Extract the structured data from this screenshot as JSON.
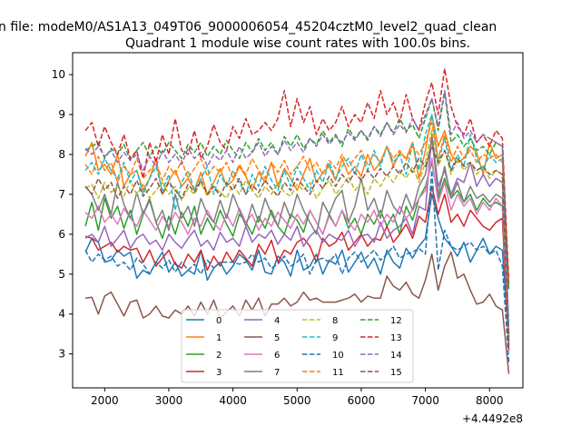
{
  "figure": {
    "suptitle": "n file: modeM0/AS1A13_049T06_9000006054_45204cztM0_level2_quad_clean",
    "background": "#ffffff"
  },
  "chart_data": {
    "type": "line",
    "title": "Quadrant 1 module wise count rates with 100.0s bins.",
    "xlabel": "",
    "ylabel": "",
    "x_offset_label": "+4.4492e8",
    "xlim": [
      1500,
      8520
    ],
    "ylim": [
      2.15,
      10.55
    ],
    "xticks": [
      2000,
      3000,
      4000,
      5000,
      6000,
      7000,
      8000
    ],
    "yticks": [
      3,
      4,
      5,
      6,
      7,
      8,
      9,
      10
    ],
    "grid": false,
    "legend": {
      "placement": "lower-center",
      "columns": 4
    },
    "x": [
      1700,
      1800,
      1900,
      2000,
      2100,
      2200,
      2300,
      2400,
      2500,
      2600,
      2700,
      2800,
      2900,
      3000,
      3100,
      3200,
      3300,
      3400,
      3500,
      3600,
      3700,
      3800,
      3900,
      4000,
      4100,
      4200,
      4300,
      4400,
      4500,
      4600,
      4700,
      4800,
      4900,
      5000,
      5100,
      5200,
      5300,
      5400,
      5500,
      5600,
      5700,
      5800,
      5900,
      6000,
      6100,
      6200,
      6300,
      6400,
      6500,
      6600,
      6700,
      6800,
      6900,
      7000,
      7100,
      7200,
      7300,
      7400,
      7500,
      7600,
      7700,
      7800,
      7900,
      8000,
      8100,
      8200,
      8300
    ],
    "series": [
      {
        "name": "0",
        "color": "#1f77b4",
        "style": "solid",
        "values": [
          5.55,
          5.9,
          5.8,
          5.3,
          5.35,
          5.6,
          5.45,
          5.55,
          4.9,
          5.1,
          5.0,
          5.3,
          5.55,
          5.05,
          5.3,
          4.95,
          5.1,
          5.0,
          5.6,
          4.85,
          5.15,
          5.3,
          5.0,
          5.2,
          5.5,
          5.35,
          5.1,
          5.6,
          5.05,
          5.0,
          5.45,
          5.3,
          4.95,
          5.6,
          5.1,
          5.2,
          5.5,
          5.0,
          5.35,
          5.25,
          5.6,
          5.05,
          5.3,
          5.55,
          5.15,
          5.4,
          5.0,
          5.6,
          5.3,
          5.15,
          5.65,
          5.4,
          5.7,
          5.9,
          7.0,
          6.4,
          5.9,
          5.7,
          5.45,
          5.8,
          5.3,
          5.6,
          5.9,
          5.5,
          5.7,
          5.6,
          3.3
        ]
      },
      {
        "name": "1",
        "color": "#ff7f0e",
        "style": "solid",
        "values": [
          7.95,
          8.3,
          7.6,
          7.75,
          7.5,
          8.0,
          7.2,
          7.5,
          7.6,
          7.1,
          7.4,
          7.9,
          7.0,
          7.35,
          7.6,
          7.2,
          7.4,
          7.1,
          7.55,
          7.0,
          7.3,
          7.65,
          7.2,
          7.35,
          7.7,
          7.45,
          7.1,
          7.55,
          7.3,
          7.8,
          7.2,
          7.65,
          7.4,
          7.1,
          7.5,
          7.9,
          7.3,
          7.55,
          7.7,
          7.35,
          7.9,
          7.5,
          7.7,
          7.45,
          8.0,
          7.6,
          7.8,
          8.2,
          7.7,
          8.05,
          7.9,
          8.3,
          7.4,
          8.1,
          9.0,
          8.2,
          8.6,
          8.0,
          7.8,
          7.9,
          8.2,
          8.05,
          7.5,
          8.3,
          7.9,
          8.0,
          3.3
        ]
      },
      {
        "name": "2",
        "color": "#2ca02c",
        "style": "solid",
        "values": [
          6.2,
          6.8,
          6.1,
          6.9,
          6.4,
          6.7,
          6.15,
          6.6,
          6.0,
          6.5,
          6.85,
          6.3,
          5.9,
          6.45,
          6.0,
          6.55,
          6.2,
          6.7,
          6.0,
          6.4,
          6.1,
          6.6,
          6.25,
          5.95,
          6.5,
          6.3,
          6.0,
          6.45,
          6.15,
          6.6,
          6.2,
          6.0,
          6.5,
          6.35,
          6.05,
          6.6,
          6.3,
          6.0,
          6.5,
          6.2,
          6.6,
          6.15,
          6.4,
          6.0,
          6.5,
          6.25,
          6.6,
          6.2,
          6.5,
          6.0,
          6.7,
          6.35,
          6.9,
          7.2,
          7.8,
          6.9,
          7.4,
          6.9,
          7.1,
          6.8,
          7.0,
          6.6,
          6.9,
          6.7,
          6.8,
          6.7,
          3.4
        ]
      },
      {
        "name": "3",
        "color": "#d62728",
        "style": "solid",
        "values": [
          5.95,
          5.9,
          5.6,
          5.7,
          5.8,
          5.55,
          5.7,
          5.6,
          5.65,
          5.3,
          5.6,
          5.2,
          5.4,
          5.6,
          5.25,
          5.15,
          5.5,
          5.3,
          5.6,
          5.1,
          5.45,
          5.2,
          5.55,
          5.3,
          5.6,
          5.4,
          5.2,
          5.75,
          5.5,
          5.85,
          5.3,
          5.6,
          5.5,
          5.8,
          5.9,
          5.7,
          5.3,
          5.9,
          5.7,
          5.8,
          6.05,
          5.6,
          5.8,
          6.0,
          5.7,
          5.9,
          5.85,
          6.2,
          5.8,
          6.0,
          6.25,
          5.9,
          6.45,
          6.3,
          7.2,
          6.5,
          7.0,
          6.3,
          6.5,
          6.2,
          6.6,
          6.4,
          6.2,
          6.1,
          6.3,
          6.4,
          3.1
        ]
      },
      {
        "name": "4",
        "color": "#9467bd",
        "style": "solid",
        "values": [
          5.9,
          6.0,
          5.8,
          6.2,
          5.7,
          5.9,
          6.1,
          5.65,
          5.9,
          6.0,
          5.75,
          5.85,
          5.6,
          6.0,
          5.8,
          5.65,
          5.9,
          6.1,
          5.7,
          5.85,
          5.6,
          6.05,
          5.8,
          5.9,
          5.7,
          6.2,
          5.8,
          6.0,
          5.9,
          6.1,
          5.75,
          6.0,
          5.85,
          6.2,
          5.7,
          5.95,
          6.1,
          5.8,
          6.0,
          5.9,
          5.85,
          6.1,
          5.7,
          5.95,
          6.0,
          5.8,
          6.3,
          5.9,
          6.1,
          6.2,
          6.4,
          6.0,
          6.7,
          6.6,
          8.5,
          7.2,
          7.6,
          7.0,
          7.4,
          7.3,
          7.8,
          7.2,
          7.5,
          7.2,
          7.4,
          7.3,
          3.3
        ]
      },
      {
        "name": "5",
        "color": "#8c564b",
        "style": "solid",
        "values": [
          4.4,
          4.42,
          4.0,
          4.45,
          4.55,
          4.25,
          3.95,
          4.3,
          4.35,
          3.9,
          4.0,
          4.2,
          3.95,
          3.9,
          4.1,
          4.0,
          4.2,
          3.95,
          4.3,
          4.0,
          4.35,
          3.9,
          4.05,
          4.2,
          3.95,
          4.35,
          4.1,
          4.4,
          3.95,
          4.25,
          4.25,
          4.4,
          4.2,
          4.3,
          4.55,
          4.35,
          4.4,
          4.3,
          4.3,
          4.3,
          4.35,
          4.4,
          4.5,
          4.3,
          4.45,
          4.4,
          4.4,
          4.95,
          4.7,
          4.6,
          4.8,
          4.5,
          4.4,
          4.85,
          5.5,
          4.6,
          5.2,
          5.55,
          4.9,
          5.0,
          4.6,
          4.25,
          4.3,
          4.5,
          4.2,
          4.1,
          2.5
        ]
      },
      {
        "name": "6",
        "color": "#e377c2",
        "style": "solid",
        "values": [
          6.55,
          6.4,
          6.7,
          6.3,
          6.5,
          6.25,
          6.65,
          6.4,
          6.2,
          6.6,
          6.35,
          6.1,
          6.45,
          6.2,
          6.55,
          6.3,
          6.0,
          6.4,
          6.2,
          6.6,
          6.3,
          6.1,
          6.5,
          6.2,
          6.65,
          6.3,
          6.5,
          6.1,
          6.4,
          6.2,
          6.55,
          6.35,
          6.15,
          6.5,
          6.25,
          6.6,
          6.3,
          6.0,
          6.45,
          6.2,
          6.6,
          6.3,
          6.1,
          6.5,
          6.3,
          6.6,
          6.2,
          6.5,
          6.3,
          6.7,
          6.4,
          6.6,
          6.9,
          7.1,
          7.9,
          6.8,
          7.3,
          6.6,
          7.0,
          6.7,
          6.9,
          6.5,
          6.8,
          6.6,
          6.9,
          6.7,
          3.4
        ]
      },
      {
        "name": "7",
        "color": "#7f7f7f",
        "style": "solid",
        "values": [
          7.2,
          7.0,
          6.6,
          7.0,
          6.5,
          7.3,
          6.75,
          6.4,
          7.05,
          6.5,
          6.9,
          6.3,
          6.6,
          6.1,
          7.0,
          6.4,
          6.7,
          6.2,
          6.9,
          6.5,
          6.3,
          6.85,
          6.4,
          7.0,
          6.6,
          6.2,
          6.75,
          6.3,
          6.9,
          6.5,
          6.2,
          6.8,
          6.4,
          7.0,
          6.6,
          6.3,
          6.0,
          6.8,
          6.5,
          6.9,
          7.1,
          6.3,
          6.7,
          7.4,
          6.6,
          6.9,
          6.4,
          7.1,
          6.7,
          6.5,
          7.0,
          6.6,
          7.2,
          7.5,
          8.4,
          7.0,
          7.7,
          6.9,
          7.3,
          6.8,
          7.2,
          6.9,
          7.0,
          6.8,
          7.0,
          6.9,
          3.5
        ]
      },
      {
        "name": "8",
        "color": "#bcbd22",
        "style": "dashed",
        "values": [
          7.15,
          7.25,
          6.9,
          7.3,
          7.05,
          7.2,
          6.95,
          7.35,
          7.0,
          7.25,
          6.9,
          7.1,
          7.3,
          7.0,
          7.2,
          6.85,
          7.15,
          7.0,
          7.3,
          6.95,
          7.2,
          7.05,
          6.9,
          7.25,
          7.0,
          7.35,
          7.1,
          6.9,
          7.2,
          7.0,
          7.3,
          7.05,
          6.95,
          7.25,
          7.1,
          7.3,
          6.9,
          7.15,
          7.35,
          7.0,
          7.2,
          7.45,
          7.1,
          7.3,
          7.0,
          7.4,
          7.2,
          7.5,
          7.3,
          7.6,
          7.4,
          7.7,
          7.3,
          7.8,
          8.6,
          7.7,
          8.1,
          7.5,
          7.9,
          7.6,
          7.8,
          7.5,
          7.7,
          7.4,
          7.6,
          7.5,
          3.4
        ]
      },
      {
        "name": "9",
        "color": "#17becf",
        "style": "dashed",
        "values": [
          7.6,
          7.8,
          7.5,
          7.9,
          7.6,
          7.4,
          7.8,
          7.3,
          7.6,
          7.0,
          7.4,
          7.7,
          7.1,
          7.5,
          6.6,
          7.3,
          7.6,
          7.1,
          7.4,
          7.7,
          7.0,
          7.5,
          7.2,
          7.6,
          7.3,
          7.0,
          7.5,
          7.2,
          7.7,
          7.35,
          7.1,
          7.6,
          7.2,
          7.7,
          7.4,
          7.1,
          7.6,
          7.3,
          7.8,
          7.4,
          7.7,
          7.9,
          7.5,
          8.0,
          7.6,
          8.1,
          7.7,
          8.2,
          7.8,
          8.0,
          7.5,
          8.3,
          7.6,
          8.5,
          9.0,
          7.8,
          8.4,
          7.6,
          8.0,
          7.7,
          8.5,
          7.9,
          7.6,
          8.0,
          7.8,
          7.9,
          3.7
        ]
      },
      {
        "name": "10",
        "color": "#1f77b4",
        "style": "dashed",
        "values": [
          5.6,
          5.3,
          5.5,
          5.35,
          5.45,
          5.2,
          5.3,
          5.1,
          5.4,
          5.25,
          5.0,
          5.3,
          5.15,
          5.35,
          5.05,
          5.3,
          5.1,
          5.25,
          5.0,
          5.35,
          5.15,
          5.3,
          5.3,
          5.3,
          5.25,
          5.3,
          5.5,
          5.3,
          5.4,
          5.15,
          5.25,
          5.45,
          5.2,
          5.3,
          5.5,
          5.0,
          5.35,
          5.4,
          5.3,
          5.5,
          5.0,
          5.4,
          5.55,
          5.3,
          5.45,
          5.6,
          5.35,
          5.5,
          5.7,
          5.4,
          5.5,
          5.55,
          5.65,
          5.5,
          7.6,
          5.1,
          6.1,
          5.7,
          5.6,
          5.7,
          5.8,
          5.6,
          5.7,
          5.5,
          5.6,
          5.2,
          2.8
        ]
      },
      {
        "name": "11",
        "color": "#ff7f0e",
        "style": "dashed",
        "values": [
          7.75,
          7.5,
          7.95,
          7.6,
          7.8,
          7.3,
          7.7,
          7.5,
          7.9,
          7.4,
          7.6,
          7.8,
          7.35,
          7.7,
          7.5,
          7.85,
          7.4,
          7.65,
          7.9,
          7.45,
          7.7,
          7.55,
          7.8,
          7.4,
          7.75,
          7.5,
          7.9,
          7.6,
          7.4,
          7.8,
          7.55,
          7.85,
          7.5,
          7.7,
          7.95,
          7.6,
          7.8,
          7.5,
          7.85,
          7.65,
          8.0,
          7.7,
          7.9,
          8.1,
          7.75,
          8.0,
          7.8,
          8.2,
          7.9,
          8.1,
          7.85,
          8.2,
          8.0,
          8.3,
          8.8,
          7.9,
          8.5,
          7.8,
          8.2,
          7.9,
          8.1,
          7.8,
          8.0,
          7.9,
          8.0,
          7.8,
          4.9
        ]
      },
      {
        "name": "12",
        "color": "#2ca02c",
        "style": "dashed",
        "values": [
          8.1,
          8.2,
          8.3,
          7.9,
          8.15,
          8.0,
          8.25,
          7.85,
          8.1,
          8.3,
          7.95,
          8.2,
          8.0,
          8.3,
          8.1,
          7.9,
          8.25,
          8.05,
          8.3,
          7.95,
          8.2,
          8.0,
          8.35,
          8.1,
          7.9,
          8.3,
          8.05,
          8.4,
          8.1,
          8.3,
          8.0,
          8.45,
          8.2,
          8.5,
          8.15,
          8.4,
          8.25,
          8.6,
          8.3,
          8.5,
          8.2,
          8.65,
          8.4,
          8.6,
          8.35,
          8.7,
          8.5,
          8.8,
          8.55,
          8.9,
          8.6,
          8.75,
          8.4,
          8.9,
          9.4,
          8.6,
          9.55,
          8.3,
          8.5,
          8.2,
          8.4,
          8.1,
          8.2,
          8.0,
          8.3,
          8.2,
          4.6
        ]
      },
      {
        "name": "13",
        "color": "#d62728",
        "style": "dashed",
        "values": [
          8.6,
          8.8,
          8.2,
          8.7,
          8.3,
          8.0,
          8.5,
          7.9,
          8.1,
          7.4,
          8.3,
          7.8,
          8.5,
          8.0,
          8.9,
          8.1,
          8.0,
          8.6,
          7.9,
          8.2,
          8.75,
          8.3,
          8.1,
          8.7,
          8.4,
          8.9,
          8.5,
          8.6,
          8.8,
          8.6,
          8.9,
          9.6,
          8.7,
          9.4,
          8.8,
          9.2,
          8.5,
          8.9,
          8.6,
          8.8,
          9.2,
          8.7,
          9.0,
          8.8,
          9.3,
          8.9,
          9.6,
          9.0,
          9.3,
          8.8,
          9.5,
          8.9,
          8.6,
          9.3,
          9.8,
          9.0,
          10.15,
          9.2,
          8.7,
          8.5,
          8.9,
          8.3,
          8.5,
          8.2,
          8.6,
          8.4,
          4.7
        ]
      },
      {
        "name": "14",
        "color": "#9467bd",
        "style": "dashed",
        "values": [
          8.15,
          8.0,
          8.2,
          7.95,
          8.1,
          7.8,
          8.05,
          7.85,
          8.0,
          7.6,
          7.95,
          7.7,
          8.1,
          7.8,
          8.0,
          7.75,
          8.15,
          7.9,
          8.05,
          7.7,
          8.0,
          7.85,
          8.1,
          7.8,
          8.2,
          7.9,
          8.05,
          8.3,
          7.95,
          8.2,
          8.0,
          8.35,
          8.1,
          8.3,
          8.05,
          8.4,
          8.2,
          8.5,
          8.25,
          8.45,
          8.3,
          8.55,
          8.35,
          8.6,
          8.4,
          8.7,
          8.45,
          8.8,
          8.5,
          8.75,
          8.55,
          8.9,
          8.6,
          9.0,
          9.4,
          8.7,
          9.6,
          8.5,
          8.8,
          8.4,
          8.6,
          8.3,
          8.5,
          8.4,
          8.3,
          8.2,
          3.5
        ]
      },
      {
        "name": "15",
        "color": "#8c564b",
        "style": "dashed",
        "values": [
          7.2,
          7.0,
          7.4,
          7.1,
          7.3,
          6.9,
          7.2,
          7.0,
          7.35,
          6.95,
          7.15,
          7.4,
          7.0,
          7.3,
          7.1,
          6.9,
          7.25,
          7.05,
          7.35,
          7.0,
          7.2,
          6.95,
          7.3,
          7.1,
          7.4,
          7.0,
          7.25,
          7.05,
          7.35,
          7.15,
          6.95,
          7.3,
          7.1,
          7.4,
          7.2,
          7.0,
          7.35,
          7.15,
          7.45,
          7.2,
          7.5,
          7.3,
          7.55,
          7.35,
          7.6,
          7.4,
          7.65,
          7.45,
          7.7,
          7.5,
          7.8,
          7.55,
          7.9,
          7.7,
          8.2,
          7.8,
          8.1,
          7.6,
          7.9,
          7.7,
          7.8,
          7.6,
          7.7,
          7.5,
          7.6,
          7.5,
          3.2
        ]
      }
    ]
  }
}
